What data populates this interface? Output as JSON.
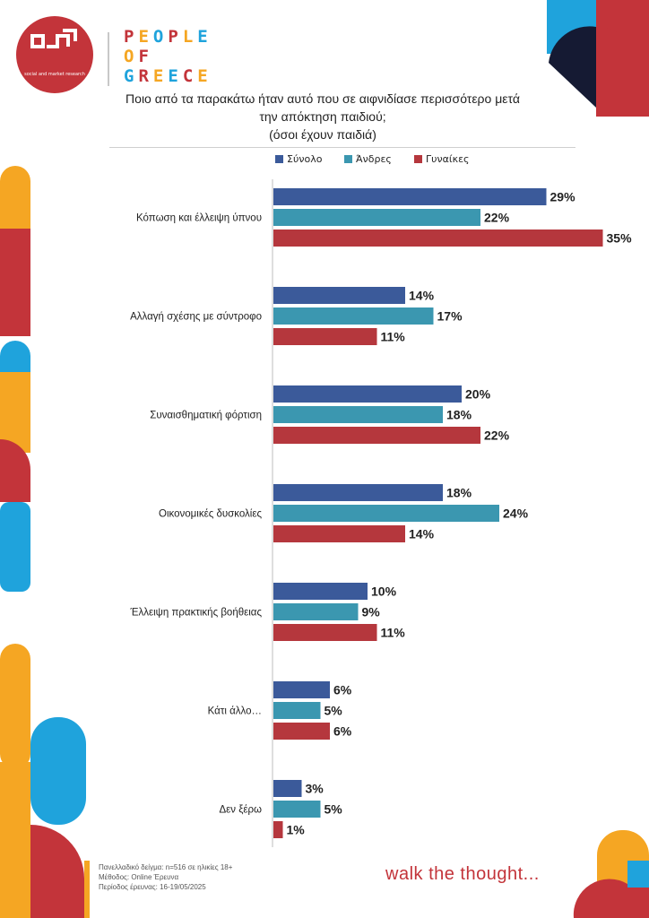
{
  "brand": {
    "logo_subtitle": "social and market research",
    "name_lines": [
      "PEOPLE",
      "OF",
      "GREECE"
    ]
  },
  "tagline": "walk the thought...",
  "colors": {
    "synolo": "#3b5a9a",
    "andres": "#3b97b0",
    "gynaikes": "#b5373d",
    "accent_red": "#c3343a",
    "accent_orange": "#f5a623",
    "accent_blue": "#1fa3dc",
    "accent_navy": "#151a33"
  },
  "icons": [
    "logo-mark-icon"
  ],
  "chart_data": {
    "type": "bar",
    "orientation": "horizontal",
    "title": "Ποιο από τα παρακάτω ήταν αυτό που σε αιφνιδίασε περισσότερο μετά την απόκτηση παιδιού;",
    "subtitle": "(όσοι έχουν παιδιά)",
    "legend_position": "top",
    "categories": [
      "Κόπωση και έλλειψη ύπνου",
      "Αλλαγή σχέσης με σύντροφο",
      "Συναισθηματική φόρτιση",
      "Οικονομικές δυσκολίες",
      "Έλλειψη πρακτικής βοήθειας",
      "Κάτι άλλο…",
      "Δεν ξέρω"
    ],
    "series": [
      {
        "name": "Σύνολο",
        "color": "#3b5a9a",
        "values": [
          29,
          14,
          20,
          18,
          10,
          6,
          3
        ]
      },
      {
        "name": "Άνδρες",
        "color": "#3b97b0",
        "values": [
          22,
          17,
          18,
          24,
          9,
          5,
          5
        ]
      },
      {
        "name": "Γυναίκες",
        "color": "#b5373d",
        "values": [
          35,
          11,
          22,
          14,
          11,
          6,
          1
        ]
      }
    ],
    "value_suffix": "%",
    "xlim": [
      0,
      35
    ],
    "grid": false
  },
  "footer": {
    "lines": [
      "Πανελλαδικό δείγμα: n=516 σε ηλικίες 18+",
      "Μέθοδος: Online Έρευνα",
      "Περίοδος έρευνας: 16-19/05/2025"
    ]
  }
}
